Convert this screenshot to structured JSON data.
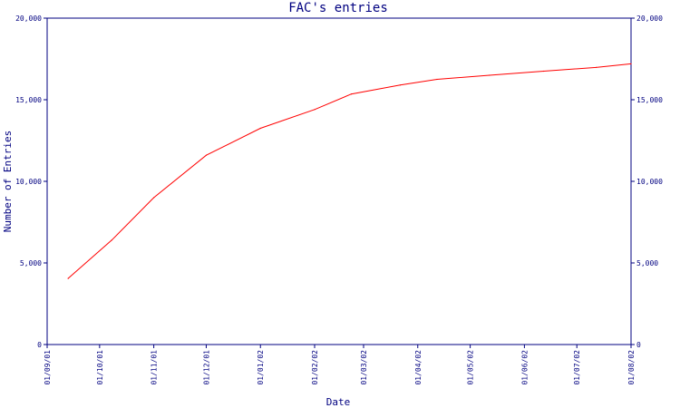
{
  "chart_data": {
    "type": "line",
    "title": "FAC's entries",
    "xlabel": "Date",
    "ylabel": "Number of Entries",
    "x_ticks": [
      "01/09/01",
      "01/10/01",
      "01/11/01",
      "01/12/01",
      "01/01/02",
      "01/02/02",
      "01/03/02",
      "01/04/02",
      "01/05/02",
      "01/06/02",
      "01/07/02",
      "01/08/02"
    ],
    "y_ticks": [
      0,
      5000,
      10000,
      15000,
      20000
    ],
    "y_tick_labels": [
      "0",
      "5,000",
      "10,000",
      "15,000",
      "20,000"
    ],
    "ylim": [
      0,
      20000
    ],
    "xlim": [
      "2001-09-01",
      "2002-08-01"
    ],
    "grid": false,
    "right_axis_mirrored": true,
    "series": [
      {
        "color": "#ff0000",
        "x": [
          "2001-09-13",
          "2001-10-08",
          "2001-11-01",
          "2001-12-01",
          "2002-01-01",
          "2002-02-01",
          "2002-02-22",
          "2002-03-22",
          "2002-04-12",
          "2002-05-12",
          "2002-06-12",
          "2002-07-12",
          "2002-08-01"
        ],
        "y": [
          4050,
          6400,
          9000,
          11600,
          13250,
          14400,
          15350,
          15900,
          16250,
          16500,
          16750,
          16980,
          17200
        ]
      }
    ]
  },
  "colors": {
    "axis": "#000080",
    "line": "#ff0000",
    "background": "#ffffff"
  }
}
